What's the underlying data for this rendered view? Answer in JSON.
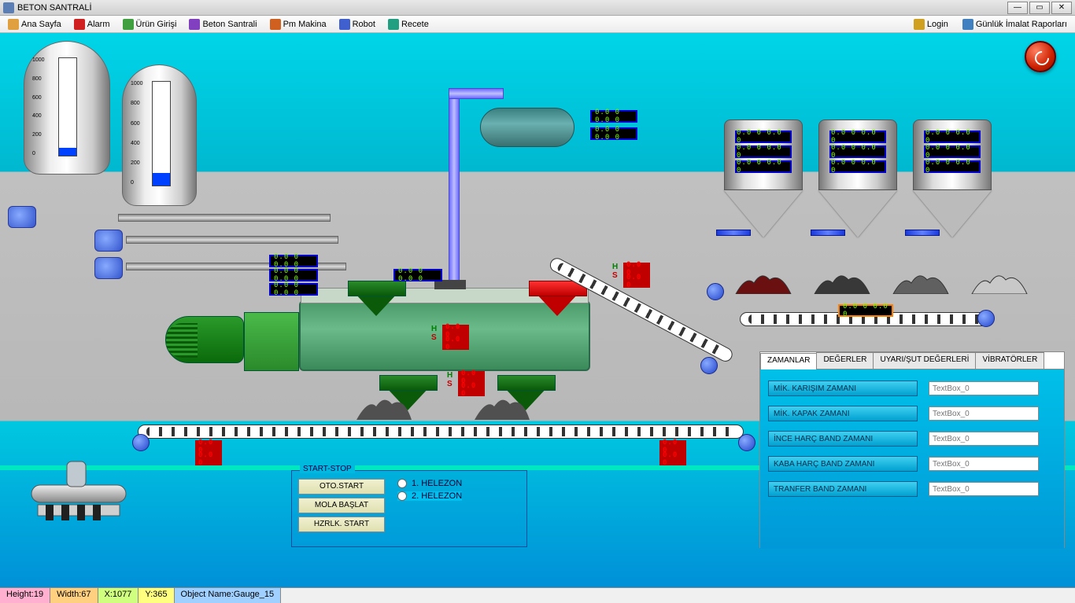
{
  "window": {
    "title": "BETON SANTRALİ"
  },
  "menu": {
    "items": [
      {
        "label": "Ana Sayfa",
        "color": "#e0a040"
      },
      {
        "label": "Alarm",
        "color": "#d02020"
      },
      {
        "label": "Ürün Girişi",
        "color": "#40a040"
      },
      {
        "label": "Beton Santrali",
        "color": "#8040c0"
      },
      {
        "label": "Pm Makina",
        "color": "#d06020"
      },
      {
        "label": "Robot",
        "color": "#4060d0"
      },
      {
        "label": "Recete",
        "color": "#20a080"
      }
    ],
    "right": [
      {
        "label": "Login",
        "color": "#d0a020"
      },
      {
        "label": "Günlük İmalat Raporları",
        "color": "#4080c0"
      }
    ]
  },
  "tanks": {
    "t1": {
      "scale": [
        "1000",
        "800",
        "600",
        "400",
        "200",
        "0"
      ],
      "fill_pct": 8
    },
    "t2": {
      "scale": [
        "1000",
        "800",
        "600",
        "400",
        "200",
        "0"
      ],
      "fill_pct": 12
    }
  },
  "readouts": {
    "zero7": "0.0 0 0.0 0",
    "htank_top": "0.0 0 0.0 0",
    "htank_bot": "0.0 0 0.0 0",
    "mixer_left": [
      "0.0 0 0.0 0",
      "0.0 0 0.0 0",
      "0.0 0 0.0 0"
    ],
    "mixer_mid": "0.0 0 0.0 0",
    "conveyor_readout": "0.0 0 0.0 0"
  },
  "hs": {
    "h": "H",
    "s": "S",
    "val": "0.0 0"
  },
  "silos": {
    "labels": [
      "0.0 0 0.0 0",
      "0.0 0 0.0 0",
      "0.0 0 0.0 0"
    ]
  },
  "start_stop": {
    "title": "START-STOP",
    "buttons": [
      "OTO.START",
      "MOLA BAŞLAT",
      "HZRLK. START"
    ],
    "radios": [
      "1. HELEZON",
      "2. HELEZON"
    ]
  },
  "tabs": {
    "labels": [
      "ZAMANLAR",
      "DEĞERLER",
      "UYARI/ŞUT DEĞERLERİ",
      "VİBRATÖRLER"
    ],
    "rows": [
      "MİK. KARIŞIM ZAMANI",
      "MİK. KAPAK ZAMANI",
      "İNCE HARÇ BAND ZAMANI",
      "KABA HARÇ BAND ZAMANI",
      "TRANFER BAND ZAMANI"
    ],
    "placeholder": "TextBox_0"
  },
  "status": {
    "height_label": "Height:19",
    "width_label": "Width:67",
    "x_label": "X:1077",
    "y_label": "Y:365",
    "obj_label": "Object Name:Gauge_15"
  },
  "colors": {
    "status_h": "#ffb0d0",
    "status_w": "#ffd080",
    "status_x": "#d0ff80",
    "status_y": "#ffff80",
    "status_o": "#a0d0ff"
  },
  "piles": {
    "red": "#6b1010",
    "dark": "#383838",
    "gray": "#606060",
    "light": "#c8c8c8"
  }
}
